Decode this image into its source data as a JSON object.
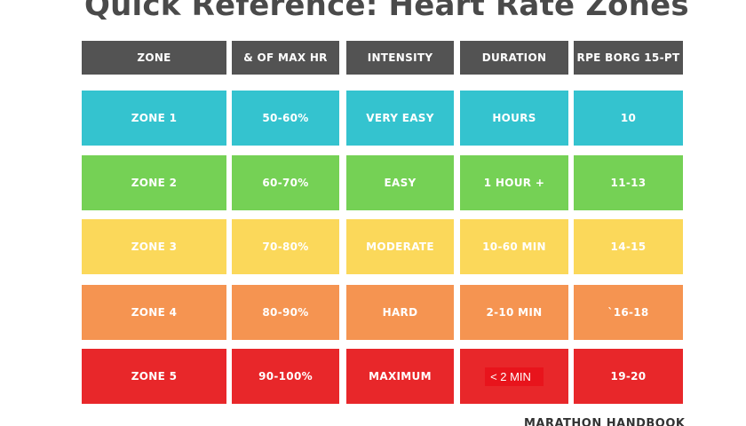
{
  "title": "Quick Reference: Heart Rate Zones",
  "columns": [
    "ZONE",
    "& OF MAX HR",
    "INTENSITY",
    "DURATION",
    "RPE BORG 15-PT"
  ],
  "rows": [
    {
      "cells": [
        "ZONE 1",
        "50-60%",
        "VERY EASY",
        "HOURS",
        "10"
      ],
      "color": "#34c3cf"
    },
    {
      "cells": [
        "ZONE 2",
        "60-70%",
        "EASY",
        "1 HOUR +",
        "11-13"
      ],
      "color": "#75d155"
    },
    {
      "cells": [
        "ZONE 3",
        "70-80%",
        "MODERATE",
        "10-60 MIN",
        "14-15"
      ],
      "color": "#fbd85a"
    },
    {
      "cells": [
        "ZONE 4",
        "80-90%",
        "HARD",
        "2-10 MIN",
        "`16-18"
      ],
      "color": "#f59451"
    },
    {
      "cells": [
        "ZONE 5",
        "90-100%",
        "MAXIMUM",
        "< 2 MIN",
        "19-20"
      ],
      "color": "#e8272a"
    }
  ],
  "highlighted_cell": {
    "row": 4,
    "column": 3
  },
  "header_color": "#535353",
  "footer": "MARATHON HANDBOOK"
}
